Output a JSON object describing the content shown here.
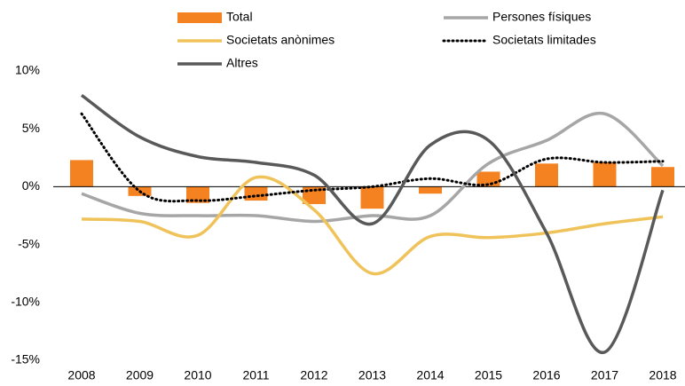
{
  "chart_data": {
    "type": "bar-line",
    "categories": [
      "2008",
      "2009",
      "2010",
      "2011",
      "2012",
      "2013",
      "2014",
      "2015",
      "2016",
      "2017",
      "2018"
    ],
    "ylim": [
      -15,
      10
    ],
    "yticks": [
      {
        "value": 10,
        "label": "10%"
      },
      {
        "value": 5,
        "label": "5%"
      },
      {
        "value": 0,
        "label": "0%"
      },
      {
        "value": -5,
        "label": "-5%"
      },
      {
        "value": -10,
        "label": "-10%"
      },
      {
        "value": -15,
        "label": "-15%"
      }
    ],
    "series": [
      {
        "name": "Total",
        "type": "bar",
        "color": "#f58220",
        "values": [
          2.3,
          -0.8,
          -1.4,
          -1.2,
          -1.5,
          -1.9,
          -0.6,
          1.3,
          2.0,
          2.1,
          1.7
        ]
      },
      {
        "name": "Persones físiques",
        "type": "line",
        "color": "#a6a6a6",
        "values": [
          -0.6,
          -2.3,
          -2.5,
          -2.5,
          -3.0,
          -2.5,
          -2.5,
          2.0,
          4.0,
          6.3,
          1.8
        ]
      },
      {
        "name": "Societats anònimes",
        "type": "line",
        "color": "#f0c35a",
        "values": [
          -2.8,
          -3.0,
          -4.2,
          0.8,
          -2.0,
          -7.5,
          -4.3,
          -4.4,
          -4.0,
          -3.2,
          -2.6
        ]
      },
      {
        "name": "Societats limitades",
        "type": "line",
        "dashed": true,
        "color": "#000000",
        "values": [
          6.3,
          -0.4,
          -1.2,
          -0.8,
          -0.3,
          0.0,
          0.7,
          0.2,
          2.4,
          2.1,
          2.2
        ]
      },
      {
        "name": "Altres",
        "type": "line",
        "color": "#595959",
        "values": [
          7.9,
          4.3,
          2.6,
          2.1,
          1.0,
          -3.2,
          3.6,
          4.0,
          -4.0,
          -14.3,
          -0.3
        ]
      }
    ]
  }
}
